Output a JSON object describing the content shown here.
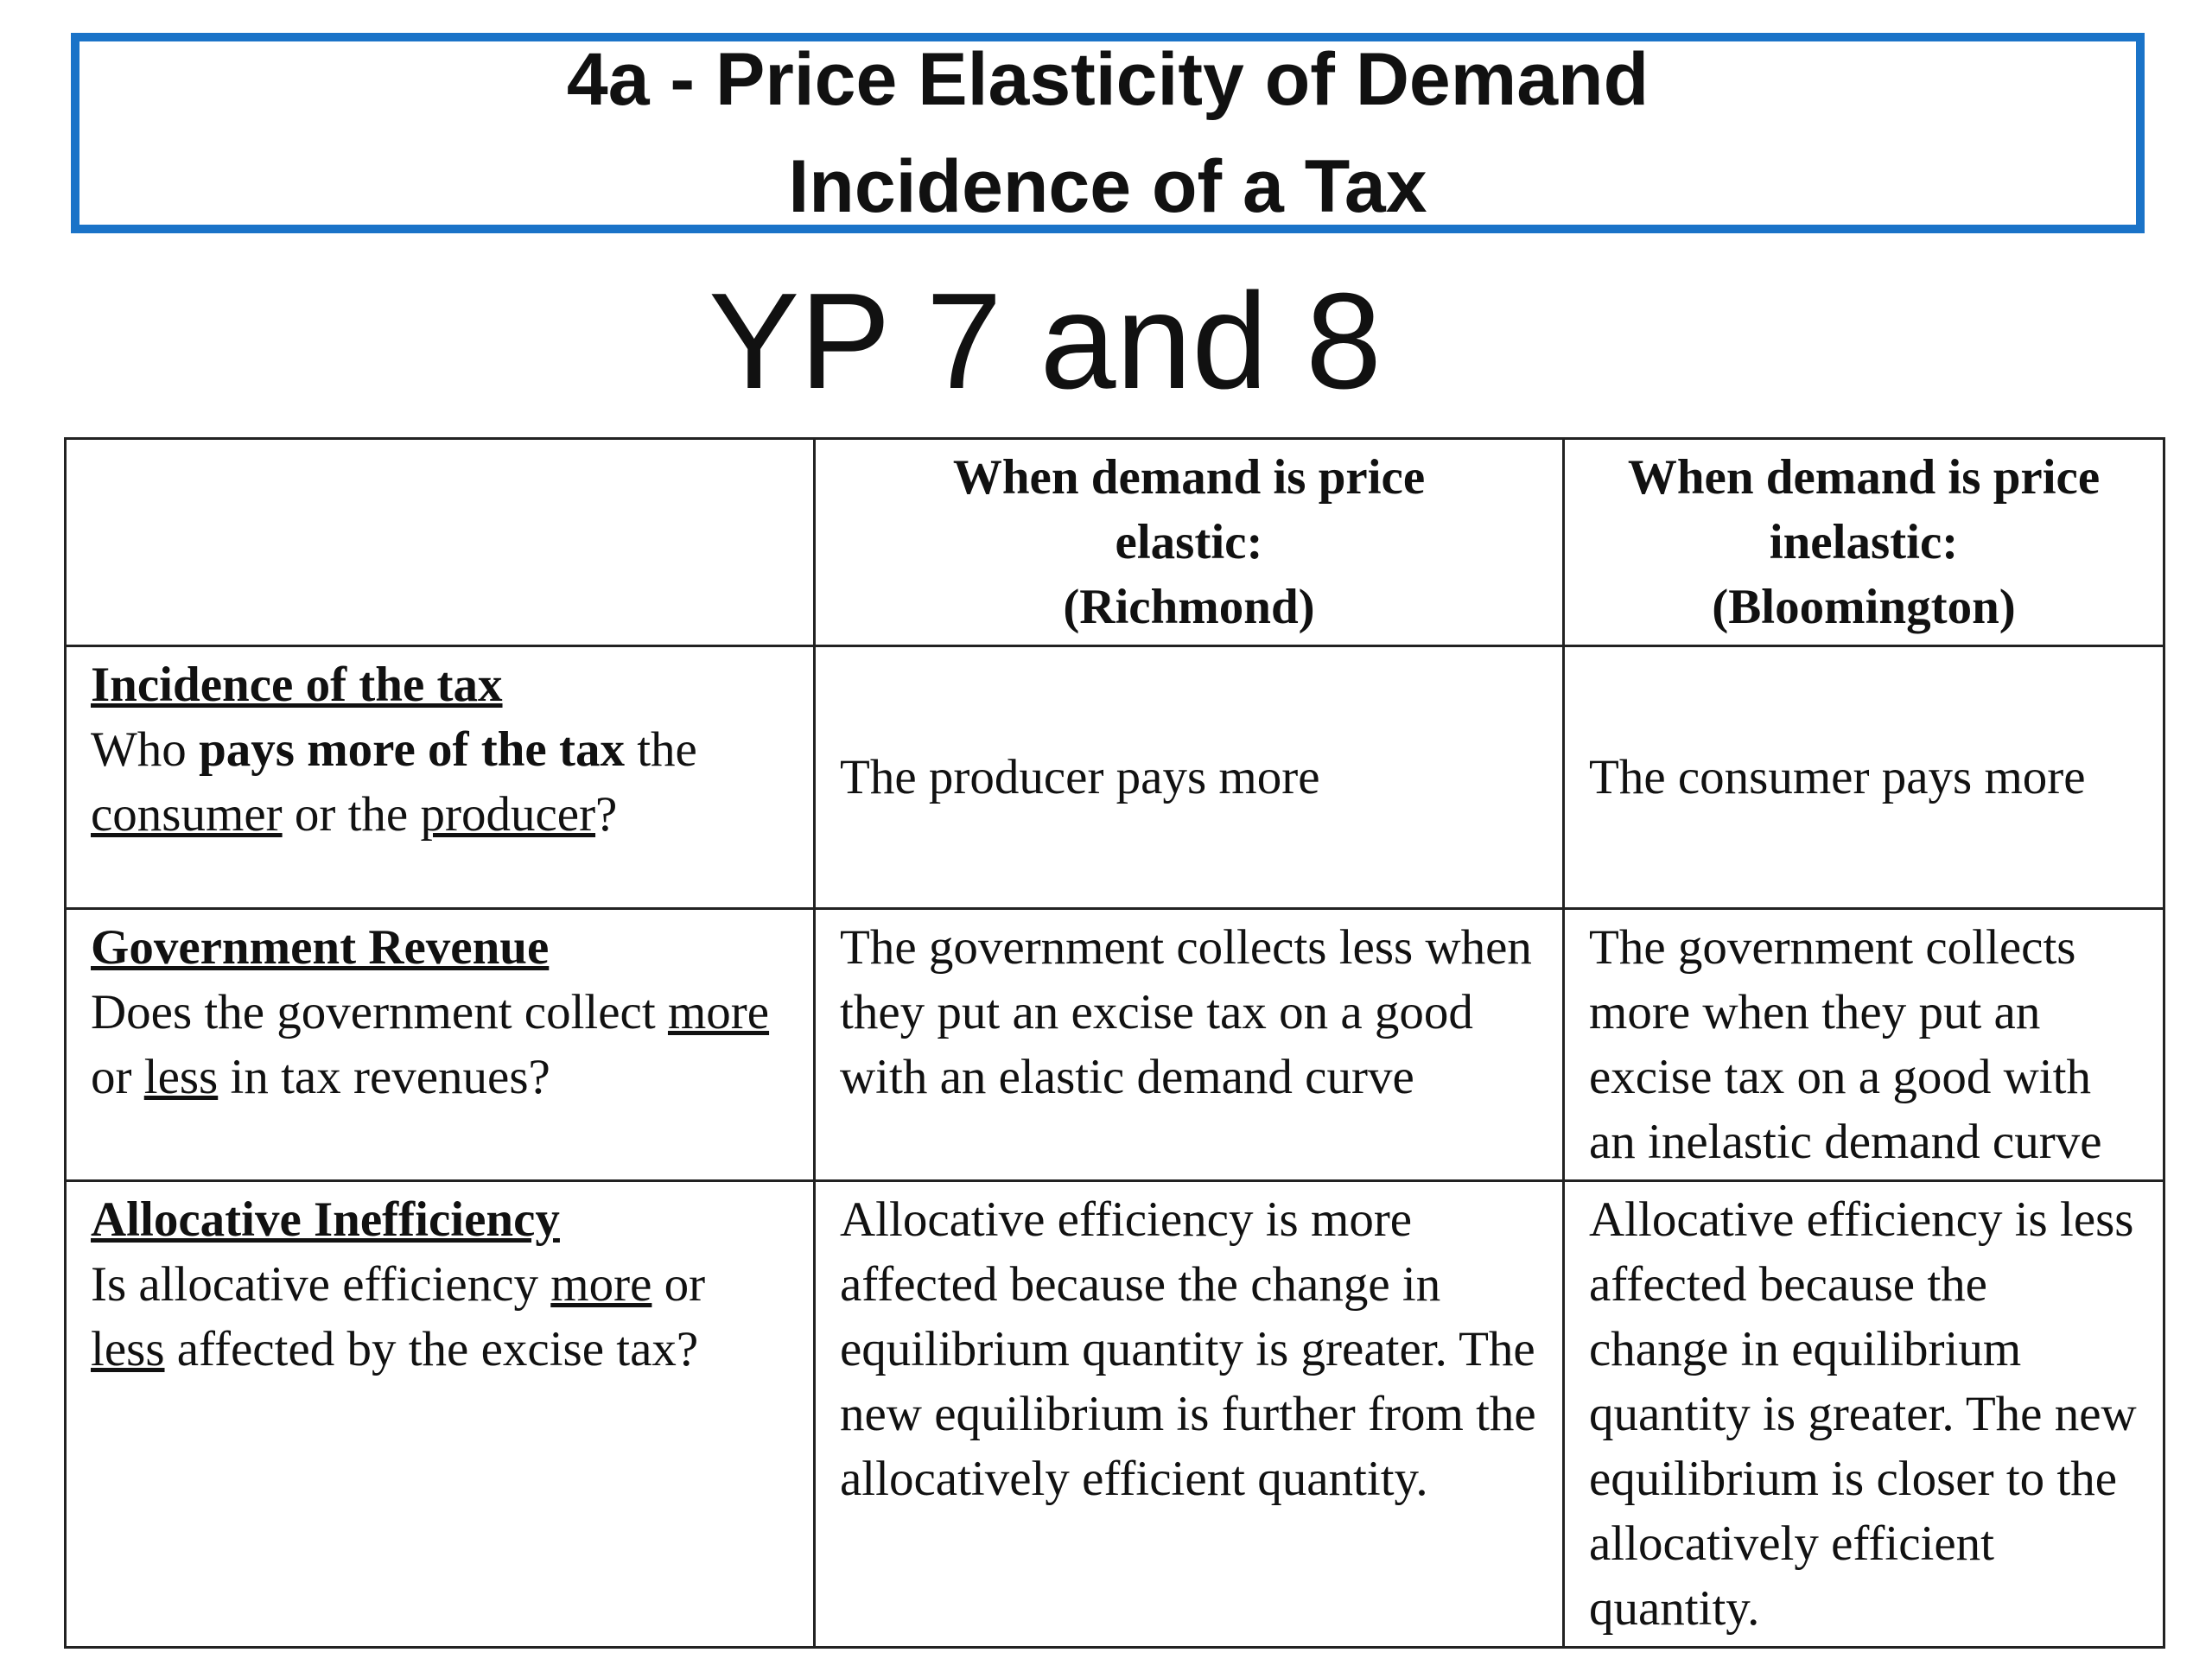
{
  "title": {
    "line1": "4a - Price Elasticity of Demand",
    "line2": "Incidence of a Tax"
  },
  "subtitle": "YP 7 and 8",
  "table": {
    "headers": {
      "empty": "",
      "elastic_line1": "When demand is price",
      "elastic_line2": "elastic:",
      "elastic_line3": "(Richmond)",
      "inelastic_line1": "When demand is price",
      "inelastic_line2": "inelastic:",
      "inelastic_line3": "(Bloomington)"
    },
    "rows": [
      {
        "heading": "Incidence of the tax",
        "q_a": "Who ",
        "q_b": "pays more of the tax",
        "q_c": " the ",
        "q_d": "consumer",
        "q_e": " or the ",
        "q_f": "producer",
        "q_g": "?",
        "elastic": "The producer pays more",
        "inelastic": "The consumer pays more"
      },
      {
        "heading": "Government Revenue",
        "q_a": "Does the government collect ",
        "q_b": "more",
        "q_c": " or ",
        "q_d": "less",
        "q_e": " in tax revenues?",
        "elastic": "The government collects less when they put an excise tax on a good with an elastic demand curve",
        "inelastic": "The government collects more when they put an excise tax on a good with an inelastic demand curve"
      },
      {
        "heading": "Allocative Inefficiency",
        "q_a": "Is allocative efficiency ",
        "q_b": "more",
        "q_c": " or ",
        "q_d": "less",
        "q_e": " affected by the excise tax?",
        "elastic": "Allocative efficiency is more affected because the change in equilibrium quantity is greater.  The new equilibrium is further from the allocatively efficient quantity.",
        "inelastic": "Allocative efficiency is less affected because the change in equilibrium quantity is greater.  The new equilibrium is closer to the allocatively efficient quantity."
      }
    ]
  },
  "colors": {
    "title_border": "#1a73c8",
    "table_border": "#222222"
  }
}
